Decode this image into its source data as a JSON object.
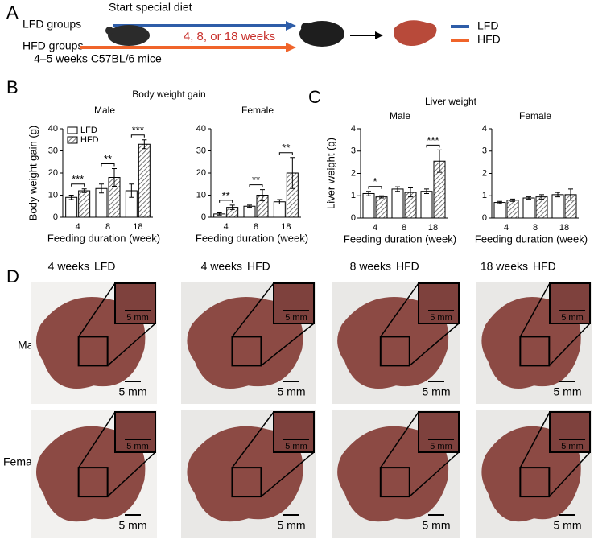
{
  "panel_labels": [
    "A",
    "B",
    "C",
    "D"
  ],
  "panel_a": {
    "start": "Start special diet",
    "groups": [
      "LFD groups",
      "HFD groups"
    ],
    "duration": "4, 8, or 18 weeks",
    "mice": "4–5 weeks C57BL/6 mice",
    "legend": [
      {
        "name": "LFD",
        "color": "#2e5da8"
      },
      {
        "name": "HFD",
        "color": "#f0642a"
      }
    ]
  },
  "group_titles": [
    "Body weight gain",
    "Liver weight"
  ],
  "chart_data": [
    {
      "type": "bar",
      "title": "Male",
      "y_label": "Body weight gain (g)",
      "x_label": "Feeding duration (week)",
      "categories": [
        "4",
        "8",
        "18"
      ],
      "series": [
        {
          "name": "LFD",
          "hatched": false,
          "values": [
            9,
            13,
            12
          ],
          "errors": [
            1,
            2,
            3
          ]
        },
        {
          "name": "HFD",
          "hatched": true,
          "values": [
            12,
            18,
            33
          ],
          "errors": [
            0.8,
            4,
            2
          ]
        }
      ],
      "significance": [
        "***",
        "**",
        "***"
      ],
      "ylim": [
        0,
        40
      ],
      "yticks": [
        0,
        10,
        20,
        30,
        40
      ],
      "legend": true
    },
    {
      "type": "bar",
      "title": "Female",
      "x_label": "Feeding duration (week)",
      "categories": [
        "4",
        "8",
        "18"
      ],
      "series": [
        {
          "hatched": false,
          "values": [
            1.5,
            5,
            7
          ],
          "errors": [
            0.5,
            0.5,
            1
          ]
        },
        {
          "hatched": true,
          "values": [
            4.5,
            10,
            20
          ],
          "errors": [
            1,
            2.5,
            7
          ]
        }
      ],
      "significance": [
        "**",
        "**",
        "**"
      ],
      "ylim": [
        0,
        40
      ],
      "yticks": [
        0,
        10,
        20,
        30,
        40
      ]
    },
    {
      "type": "bar",
      "title": "Male",
      "y_label": "Liver weight (g)",
      "x_label": "Feeding duration (week)",
      "categories": [
        "4",
        "8",
        "18"
      ],
      "series": [
        {
          "hatched": false,
          "values": [
            1.1,
            1.3,
            1.2
          ],
          "errors": [
            0.1,
            0.1,
            0.1
          ]
        },
        {
          "hatched": true,
          "values": [
            0.95,
            1.15,
            2.55
          ],
          "errors": [
            0.05,
            0.2,
            0.5
          ]
        }
      ],
      "significance": [
        "*",
        null,
        "***"
      ],
      "ylim": [
        0,
        4
      ],
      "yticks": [
        0,
        1,
        2,
        3,
        4
      ]
    },
    {
      "type": "bar",
      "title": "Female",
      "x_label": "Feeding duration (week)",
      "categories": [
        "4",
        "8",
        "18"
      ],
      "series": [
        {
          "hatched": false,
          "values": [
            0.7,
            0.9,
            1.05
          ],
          "errors": [
            0.05,
            0.05,
            0.1
          ]
        },
        {
          "hatched": true,
          "values": [
            0.8,
            0.95,
            1.05
          ],
          "errors": [
            0.05,
            0.1,
            0.25
          ]
        }
      ],
      "significance": [
        null,
        null,
        null
      ],
      "ylim": [
        0,
        4
      ],
      "yticks": [
        0,
        1,
        2,
        3,
        4
      ]
    }
  ],
  "panel_d": {
    "columns": [
      {
        "weeks": "4 weeks",
        "diet": "LFD"
      },
      {
        "weeks": "4 weeks",
        "diet": "HFD"
      },
      {
        "weeks": "8 weeks",
        "diet": "HFD"
      },
      {
        "weeks": "18 weeks",
        "diet": "HFD"
      }
    ],
    "rows": [
      "Male",
      "Female"
    ],
    "scale": "5 mm"
  }
}
